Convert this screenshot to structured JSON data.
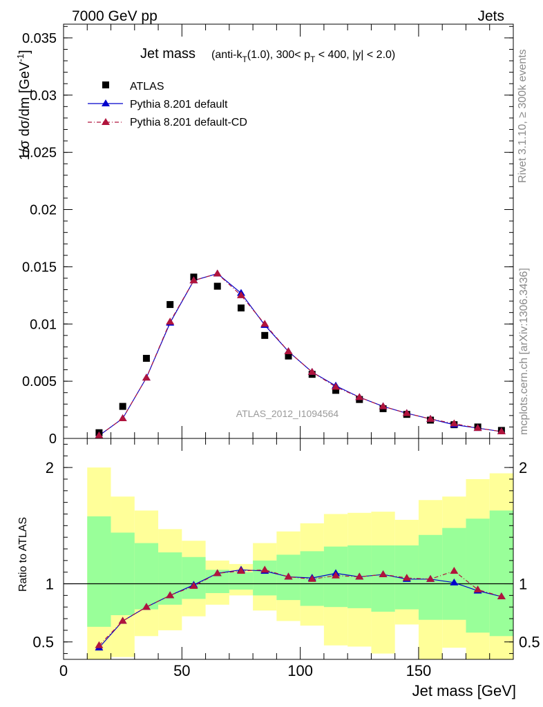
{
  "header": {
    "left": "7000 GeV pp",
    "right": "Jets"
  },
  "side_labels": {
    "rivet": "Rivet 3.1.10, ≥ 300k events",
    "mcplots": "mcplots.cern.ch [arXiv:1306.3436]"
  },
  "chart_data": [
    {
      "type": "scatter",
      "title_main": "Jet mass",
      "title_detail_pre": "(anti-k",
      "title_sub_T1": "T",
      "title_detail_mid": "(1.0), 300< p",
      "title_sub_T2": "T",
      "title_detail_post": " < 400, |y| < 2.0)",
      "ylabel": "1/σ dσ/dm [GeV",
      "ylabel_sup": "-1",
      "ylabel_close": "]",
      "watermark": "ATLAS_2012_I1094564",
      "xlim": [
        0,
        190
      ],
      "ylim": [
        0,
        0.0362
      ],
      "yticks": [
        {
          "v": 0,
          "label": "0"
        },
        {
          "v": 0.005,
          "label": "0.005"
        },
        {
          "v": 0.01,
          "label": "0.01"
        },
        {
          "v": 0.015,
          "label": "0.015"
        },
        {
          "v": 0.02,
          "label": "0.02"
        },
        {
          "v": 0.025,
          "label": "0.025"
        },
        {
          "v": 0.03,
          "label": "0.03"
        },
        {
          "v": 0.035,
          "label": "0.035"
        }
      ],
      "x": [
        15,
        25,
        35,
        45,
        55,
        65,
        75,
        85,
        95,
        105,
        115,
        125,
        135,
        145,
        155,
        165,
        175,
        185
      ],
      "series": [
        {
          "name": "ATLAS",
          "color": "#000000",
          "marker": "square",
          "values": [
            0.0005,
            0.0028,
            0.007,
            0.0117,
            0.0141,
            0.0133,
            0.0114,
            0.009,
            0.0072,
            0.0056,
            0.0042,
            0.0034,
            0.0026,
            0.0021,
            0.0016,
            0.0012,
            0.001,
            0.0007
          ]
        },
        {
          "name": "Pythia 8.201 default",
          "color": "#0000cc",
          "marker": "triangle",
          "dash": "",
          "values": [
            0.00025,
            0.00175,
            0.0053,
            0.0101,
            0.0138,
            0.0144,
            0.0127,
            0.0099,
            0.0076,
            0.0058,
            0.0046,
            0.0036,
            0.0028,
            0.0022,
            0.0017,
            0.0012,
            0.0009,
            0.0006
          ]
        },
        {
          "name": "Pythia 8.201 default-CD",
          "color": "#b0143c",
          "marker": "triangle",
          "dash": "6,3,1,3",
          "values": [
            0.00025,
            0.00175,
            0.0053,
            0.0102,
            0.0138,
            0.0144,
            0.0125,
            0.01,
            0.0076,
            0.0058,
            0.0045,
            0.0036,
            0.0028,
            0.0022,
            0.0017,
            0.0013,
            0.0009,
            0.0006
          ]
        }
      ]
    },
    {
      "type": "line",
      "ylabel": "Ratio to ATLAS",
      "xlabel": "Jet mass [GeV]",
      "xlim": [
        0,
        190
      ],
      "ylim": [
        0.35,
        2.25
      ],
      "xticks": [
        {
          "v": 0,
          "label": "0"
        },
        {
          "v": 50,
          "label": "50"
        },
        {
          "v": 100,
          "label": "100"
        },
        {
          "v": 150,
          "label": "150"
        }
      ],
      "yticks": [
        {
          "v": 0.5,
          "label": "0.5"
        },
        {
          "v": 1,
          "label": "1"
        },
        {
          "v": 2,
          "label": "2"
        }
      ],
      "bin_edges": [
        10,
        20,
        30,
        40,
        50,
        60,
        70,
        80,
        90,
        100,
        110,
        120,
        130,
        140,
        150,
        160,
        170,
        180,
        190
      ],
      "band_colors": {
        "outer": "#ffff99",
        "inner": "#99ff99"
      },
      "yellow_band": {
        "low": [
          0.35,
          0.37,
          0.55,
          0.6,
          0.72,
          0.82,
          0.9,
          0.77,
          0.68,
          0.64,
          0.47,
          0.46,
          0.4,
          0.65,
          0.35,
          0.45,
          0.35,
          0.35
        ],
        "high": [
          2.0,
          1.75,
          1.63,
          1.47,
          1.37,
          1.2,
          1.17,
          1.35,
          1.45,
          1.52,
          1.6,
          1.61,
          1.62,
          1.55,
          1.72,
          1.75,
          1.9,
          1.95
        ]
      },
      "green_band": {
        "low": [
          0.63,
          0.73,
          0.78,
          0.82,
          0.87,
          0.92,
          0.95,
          0.9,
          0.86,
          0.81,
          0.8,
          0.79,
          0.76,
          0.78,
          0.69,
          0.69,
          0.58,
          0.55
        ]
      },
      "green_band_high": [
        1.58,
        1.44,
        1.35,
        1.27,
        1.23,
        1.12,
        1.1,
        1.2,
        1.25,
        1.28,
        1.32,
        1.33,
        1.33,
        1.33,
        1.42,
        1.48,
        1.56,
        1.63
      ],
      "series": [
        {
          "name": "Pythia 8.201 default",
          "color": "#0000cc",
          "dash": "",
          "values": [
            0.45,
            0.68,
            0.8,
            0.9,
            0.99,
            1.09,
            1.12,
            1.11,
            1.06,
            1.05,
            1.09,
            1.06,
            1.08,
            1.04,
            1.04,
            1.01,
            0.94,
            0.89
          ]
        },
        {
          "name": "Pythia 8.201 default-CD",
          "color": "#b0143c",
          "dash": "6,3,1,3",
          "values": [
            0.47,
            0.68,
            0.8,
            0.9,
            0.98,
            1.09,
            1.11,
            1.12,
            1.06,
            1.04,
            1.07,
            1.06,
            1.08,
            1.05,
            1.04,
            1.11,
            0.95,
            0.89
          ]
        }
      ]
    }
  ]
}
